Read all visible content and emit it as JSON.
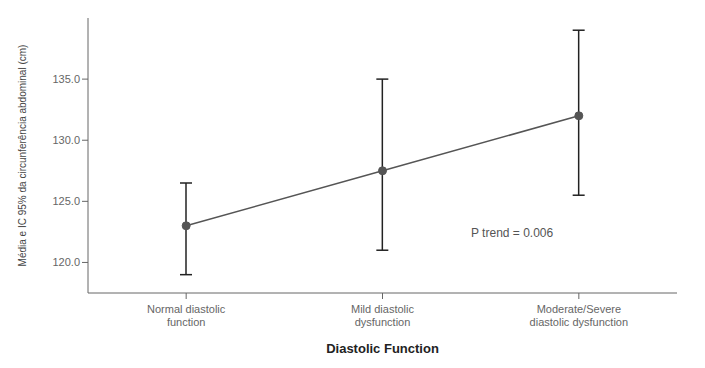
{
  "chart_data": {
    "type": "line",
    "categories": [
      "Normal diastolic\nfunction",
      "Mild diastolic\ndysfunction",
      "Moderate/Severe\ndiastolic dysfunction"
    ],
    "values": [
      123.0,
      127.5,
      132.0
    ],
    "ci_lower": [
      119.0,
      121.0,
      125.5
    ],
    "ci_upper": [
      126.5,
      135.0,
      139.0
    ],
    "xlabel": "Diastolic Function",
    "ylabel": "Média e IC 95% da circunferência abdominal (cm)",
    "ylim": [
      117.5,
      140.0
    ],
    "yticks": [
      {
        "value": 120.0,
        "label": "120.0"
      },
      {
        "value": 125.0,
        "label": "125.0"
      },
      {
        "value": 130.0,
        "label": "130.0"
      },
      {
        "value": 135.0,
        "label": "135.0"
      }
    ],
    "annotation": "P trend = 0.006",
    "color": "#555555",
    "marker": "circle",
    "grid": false
  }
}
